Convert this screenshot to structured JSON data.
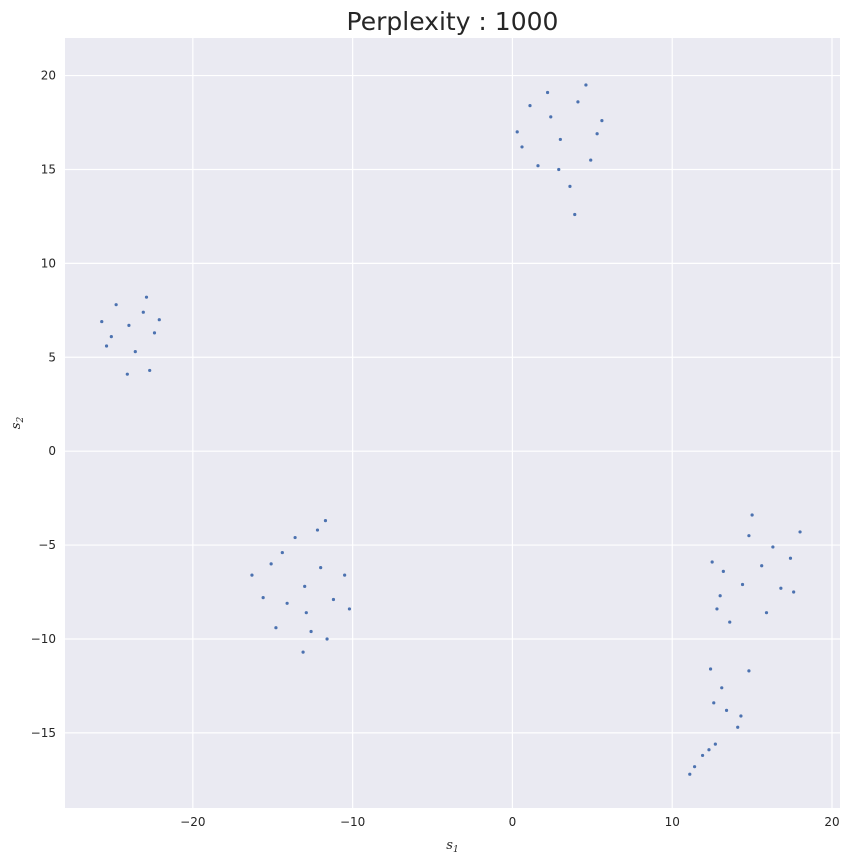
{
  "chart_data": {
    "type": "scatter",
    "title": "Perplexity : 1000",
    "xlabel": "s",
    "xlabel_sub": "1",
    "ylabel": "s",
    "ylabel_sub": "2",
    "xlim": [
      -28.0,
      20.5
    ],
    "ylim": [
      -19.0,
      22.0
    ],
    "xticks": [
      -20,
      -10,
      0,
      10,
      20
    ],
    "yticks": [
      -15,
      -10,
      -5,
      0,
      5,
      10,
      15,
      20
    ],
    "tick_labels_x": [
      "−20",
      "−10",
      "0",
      "10",
      "20"
    ],
    "tick_labels_y": [
      "−15",
      "−10",
      "−5",
      "0",
      "5",
      "10",
      "15",
      "20"
    ],
    "grid": true,
    "background": "#eaeaf2",
    "point_color": "#4c72b0",
    "series": [
      {
        "values": [
          {
            "x": 3.0,
            "y": 16.6
          },
          {
            "x": 1.6,
            "y": 15.2
          },
          {
            "x": 4.1,
            "y": 18.6
          },
          {
            "x": 2.4,
            "y": 17.8
          },
          {
            "x": 5.3,
            "y": 16.9
          },
          {
            "x": 0.6,
            "y": 16.2
          },
          {
            "x": 3.6,
            "y": 14.1
          },
          {
            "x": 4.6,
            "y": 19.5
          },
          {
            "x": 2.2,
            "y": 19.1
          },
          {
            "x": 3.9,
            "y": 12.6
          },
          {
            "x": 0.3,
            "y": 17.0
          },
          {
            "x": 5.6,
            "y": 17.6
          },
          {
            "x": 2.9,
            "y": 15.0
          },
          {
            "x": 1.1,
            "y": 18.4
          },
          {
            "x": 4.9,
            "y": 15.5
          },
          {
            "x": -24.0,
            "y": 6.7
          },
          {
            "x": -23.1,
            "y": 7.4
          },
          {
            "x": -25.1,
            "y": 6.1
          },
          {
            "x": -22.4,
            "y": 6.3
          },
          {
            "x": -24.8,
            "y": 7.8
          },
          {
            "x": -23.6,
            "y": 5.3
          },
          {
            "x": -25.7,
            "y": 6.9
          },
          {
            "x": -22.1,
            "y": 7.0
          },
          {
            "x": -24.1,
            "y": 4.1
          },
          {
            "x": -22.9,
            "y": 8.2
          },
          {
            "x": -25.4,
            "y": 5.6
          },
          {
            "x": -22.7,
            "y": 4.3
          },
          {
            "x": -13.0,
            "y": -7.2
          },
          {
            "x": -12.0,
            "y": -6.2
          },
          {
            "x": -14.1,
            "y": -8.1
          },
          {
            "x": -11.2,
            "y": -7.9
          },
          {
            "x": -15.1,
            "y": -6.0
          },
          {
            "x": -12.6,
            "y": -9.6
          },
          {
            "x": -10.5,
            "y": -6.6
          },
          {
            "x": -16.3,
            "y": -6.6
          },
          {
            "x": -13.6,
            "y": -4.6
          },
          {
            "x": -12.2,
            "y": -4.2
          },
          {
            "x": -14.8,
            "y": -9.4
          },
          {
            "x": -11.6,
            "y": -10.0
          },
          {
            "x": -13.1,
            "y": -10.7
          },
          {
            "x": -10.2,
            "y": -8.4
          },
          {
            "x": -15.6,
            "y": -7.8
          },
          {
            "x": -11.7,
            "y": -3.7
          },
          {
            "x": -14.4,
            "y": -5.4
          },
          {
            "x": -12.9,
            "y": -8.6
          },
          {
            "x": 15.6,
            "y": -6.1
          },
          {
            "x": 13.2,
            "y": -6.4
          },
          {
            "x": 17.4,
            "y": -5.7
          },
          {
            "x": 14.4,
            "y": -7.1
          },
          {
            "x": 16.3,
            "y": -5.1
          },
          {
            "x": 12.5,
            "y": -5.9
          },
          {
            "x": 18.0,
            "y": -4.3
          },
          {
            "x": 15.0,
            "y": -3.4
          },
          {
            "x": 13.6,
            "y": -9.1
          },
          {
            "x": 16.8,
            "y": -7.3
          },
          {
            "x": 12.8,
            "y": -8.4
          },
          {
            "x": 14.8,
            "y": -4.5
          },
          {
            "x": 17.6,
            "y": -7.5
          },
          {
            "x": 15.9,
            "y": -8.6
          },
          {
            "x": 13.0,
            "y": -7.7
          },
          {
            "x": 13.4,
            "y": -13.8
          },
          {
            "x": 12.6,
            "y": -13.4
          },
          {
            "x": 14.3,
            "y": -14.1
          },
          {
            "x": 12.4,
            "y": -11.6
          },
          {
            "x": 14.8,
            "y": -11.7
          },
          {
            "x": 13.1,
            "y": -12.6
          },
          {
            "x": 14.1,
            "y": -14.7
          },
          {
            "x": 12.3,
            "y": -15.9
          },
          {
            "x": 11.9,
            "y": -16.2
          },
          {
            "x": 11.4,
            "y": -16.8
          },
          {
            "x": 11.1,
            "y": -17.2
          },
          {
            "x": 12.7,
            "y": -15.6
          }
        ]
      }
    ]
  }
}
